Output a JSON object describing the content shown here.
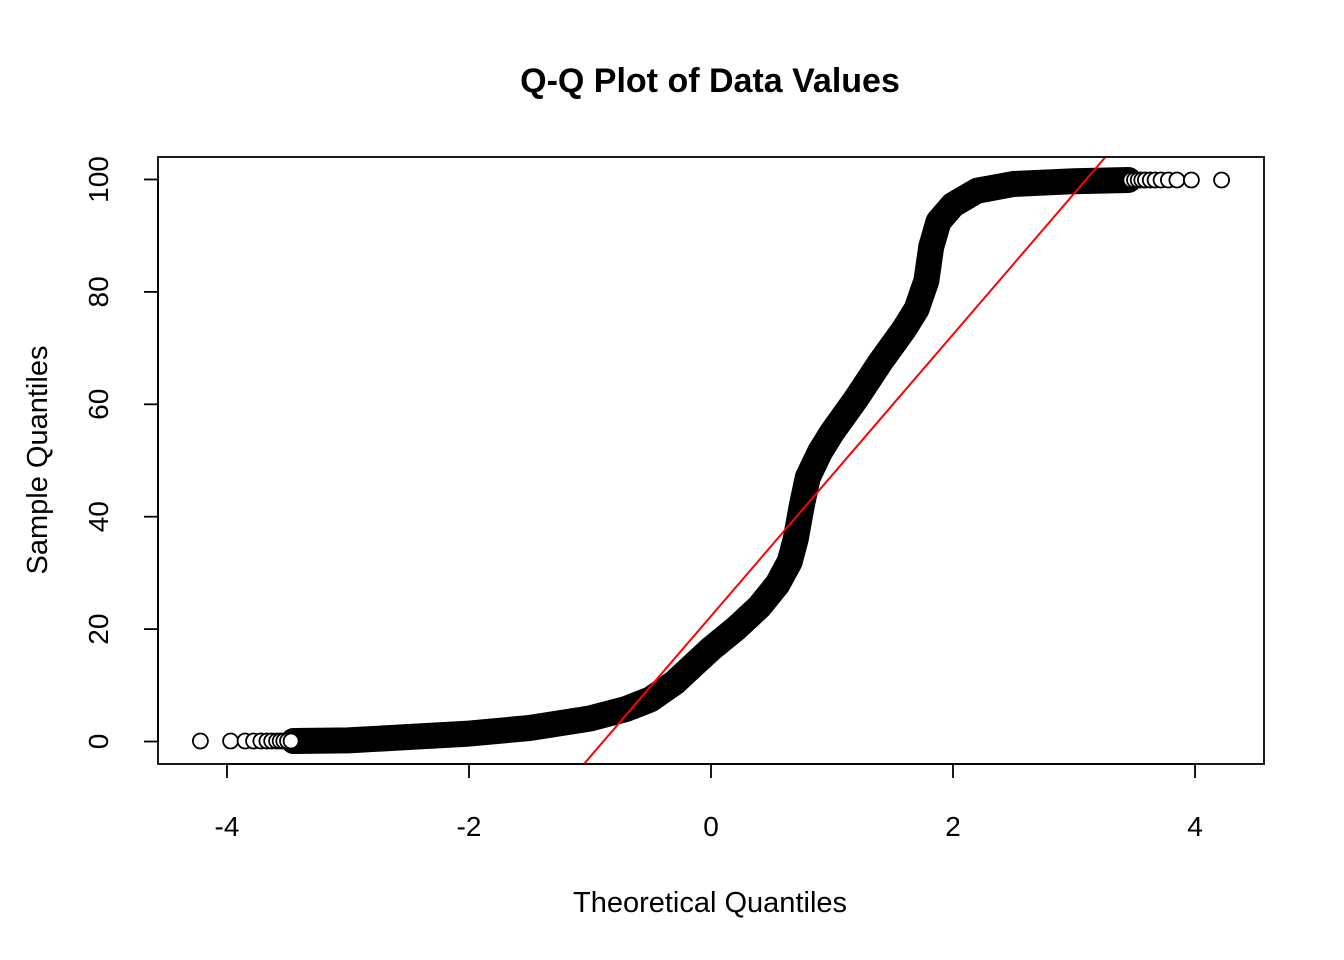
{
  "chart_data": {
    "type": "scatter",
    "title": "Q-Q Plot of Data Values",
    "xlabel": "Theoretical Quantiles",
    "ylabel": "Sample Quantiles",
    "xlim": [
      -4.57,
      4.57
    ],
    "ylim": [
      -4,
      104
    ],
    "x_ticks": [
      -4,
      -2,
      0,
      2,
      4
    ],
    "y_ticks": [
      0,
      20,
      40,
      60,
      80,
      100
    ],
    "x_tick_labels": [
      "-4",
      "-2",
      "0",
      "2",
      "4"
    ],
    "y_tick_labels": [
      "0",
      "20",
      "40",
      "60",
      "80",
      "100"
    ],
    "grid": false,
    "legend": "none",
    "point_marker": "open-circle",
    "point_color": "#000000",
    "reference_line_color": "#ff0000",
    "series": [
      {
        "points": [
          [
            -4.22,
            0.1
          ],
          [
            -3.97,
            0.1
          ],
          [
            -3.85,
            0.1
          ],
          [
            -3.78,
            0.1
          ],
          [
            -3.72,
            0.1
          ],
          [
            -3.67,
            0.1
          ],
          [
            -3.63,
            0.1
          ],
          [
            -3.59,
            0.1
          ],
          [
            -3.56,
            0.1
          ],
          [
            -3.53,
            0.1
          ],
          [
            -3.5,
            0.1
          ],
          [
            -3.47,
            0.1
          ],
          [
            3.47,
            99.9
          ],
          [
            3.5,
            99.9
          ],
          [
            3.53,
            99.9
          ],
          [
            3.56,
            99.9
          ],
          [
            3.59,
            99.9
          ],
          [
            3.63,
            99.9
          ],
          [
            3.67,
            99.9
          ],
          [
            3.72,
            99.9
          ],
          [
            3.78,
            99.9
          ],
          [
            3.85,
            99.9
          ],
          [
            3.97,
            99.9
          ],
          [
            4.22,
            99.9
          ]
        ],
        "curve": [
          [
            -3.45,
            0.1
          ],
          [
            -3.0,
            0.2
          ],
          [
            -2.5,
            0.8
          ],
          [
            -2.0,
            1.4
          ],
          [
            -1.5,
            2.4
          ],
          [
            -1.0,
            4.1
          ],
          [
            -0.7,
            5.8
          ],
          [
            -0.5,
            7.5
          ],
          [
            -0.3,
            10.5
          ],
          [
            -0.1,
            14.5
          ],
          [
            0.0,
            16.5
          ],
          [
            0.2,
            20.0
          ],
          [
            0.4,
            24.0
          ],
          [
            0.55,
            28.0
          ],
          [
            0.65,
            32.0
          ],
          [
            0.7,
            36.0
          ],
          [
            0.75,
            42.0
          ],
          [
            0.8,
            47.0
          ],
          [
            0.9,
            51.5
          ],
          [
            1.0,
            55.0
          ],
          [
            1.2,
            61.0
          ],
          [
            1.4,
            67.5
          ],
          [
            1.6,
            73.5
          ],
          [
            1.7,
            77.0
          ],
          [
            1.78,
            82.0
          ],
          [
            1.82,
            88.0
          ],
          [
            1.88,
            92.5
          ],
          [
            2.0,
            95.5
          ],
          [
            2.2,
            98.0
          ],
          [
            2.5,
            99.2
          ],
          [
            3.0,
            99.7
          ],
          [
            3.45,
            99.9
          ]
        ]
      }
    ],
    "reference_line": {
      "x": [
        -1.05,
        3.26
      ],
      "y": [
        -4,
        104
      ]
    }
  }
}
